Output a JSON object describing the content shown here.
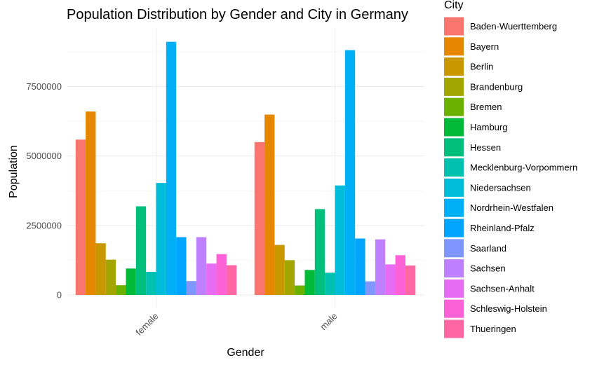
{
  "chart_data": {
    "type": "bar",
    "title": "Population Distribution by Gender and City in Germany",
    "xlabel": "Gender",
    "ylabel": "Population",
    "categories": [
      "female",
      "male"
    ],
    "ylim": [
      0,
      9500000
    ],
    "yticks": [
      0,
      2500000,
      5000000,
      7500000
    ],
    "ytick_labels": [
      "0",
      "2500000",
      "5000000",
      "7500000"
    ],
    "grid": true,
    "legend": {
      "title": "City",
      "position": "right"
    },
    "series": [
      {
        "name": "Baden-Wuerttemberg",
        "color": "#F8766D",
        "values": [
          5590000,
          5500000
        ]
      },
      {
        "name": "Bayern",
        "color": "#E58700",
        "values": [
          6600000,
          6490000
        ]
      },
      {
        "name": "Berlin",
        "color": "#C99800",
        "values": [
          1860000,
          1800000
        ]
      },
      {
        "name": "Brandenburg",
        "color": "#A3A500",
        "values": [
          1270000,
          1250000
        ]
      },
      {
        "name": "Bremen",
        "color": "#6BB100",
        "values": [
          350000,
          340000
        ]
      },
      {
        "name": "Hamburg",
        "color": "#00BA38",
        "values": [
          950000,
          900000
        ]
      },
      {
        "name": "Hessen",
        "color": "#00BF7D",
        "values": [
          3190000,
          3090000
        ]
      },
      {
        "name": "Mecklenburg-Vorpommern",
        "color": "#00C0AF",
        "values": [
          830000,
          800000
        ]
      },
      {
        "name": "Niedersachsen",
        "color": "#00BCD8",
        "values": [
          4030000,
          3940000
        ]
      },
      {
        "name": "Nordrhein-Westfalen",
        "color": "#00B0F6",
        "values": [
          9110000,
          8810000
        ]
      },
      {
        "name": "Rheinland-Pfalz",
        "color": "#00A5FF",
        "values": [
          2080000,
          2030000
        ]
      },
      {
        "name": "Saarland",
        "color": "#7F96FF",
        "values": [
          500000,
          490000
        ]
      },
      {
        "name": "Sachsen",
        "color": "#BF80FF",
        "values": [
          2080000,
          2000000
        ]
      },
      {
        "name": "Sachsen-Anhalt",
        "color": "#E76BF3",
        "values": [
          1130000,
          1100000
        ]
      },
      {
        "name": "Schleswig-Holstein",
        "color": "#FC61D5",
        "values": [
          1470000,
          1430000
        ]
      },
      {
        "name": "Thueringen",
        "color": "#FF67A4",
        "values": [
          1070000,
          1060000
        ]
      }
    ]
  }
}
